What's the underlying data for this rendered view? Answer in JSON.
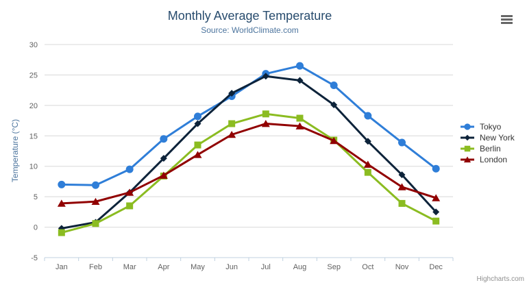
{
  "credits": "Highcharts.com",
  "export_menu": {
    "icon": "hamburger-icon"
  },
  "colors": {
    "background": "#ffffff",
    "title": "#274b6d",
    "subtitle": "#4d759e",
    "axis_title": "#4d759e",
    "tick_label": "#606060",
    "grid": "#d8d8d8",
    "axis_line": "#c0d0e0",
    "legend_text": "#333333",
    "credits_text": "#909090",
    "export_icon": "#666666"
  },
  "chart_data": {
    "type": "line",
    "title": "Monthly Average Temperature",
    "subtitle": "Source: WorldClimate.com",
    "xlabel": "",
    "ylabel": "Temperature (°C)",
    "ylim": [
      -5,
      30
    ],
    "y_ticks": [
      -5,
      0,
      5,
      10,
      15,
      20,
      25,
      30
    ],
    "grid": true,
    "legend_position": "right",
    "categories": [
      "Jan",
      "Feb",
      "Mar",
      "Apr",
      "May",
      "Jun",
      "Jul",
      "Aug",
      "Sep",
      "Oct",
      "Nov",
      "Dec"
    ],
    "series": [
      {
        "name": "Tokyo",
        "color": "#2f7ed8",
        "marker": "circle",
        "values": [
          7.0,
          6.9,
          9.5,
          14.5,
          18.2,
          21.5,
          25.2,
          26.5,
          23.3,
          18.3,
          13.9,
          9.6
        ]
      },
      {
        "name": "New York",
        "color": "#0d233a",
        "marker": "diamond",
        "values": [
          -0.2,
          0.8,
          5.7,
          11.3,
          17.0,
          22.0,
          24.8,
          24.1,
          20.1,
          14.1,
          8.6,
          2.5
        ]
      },
      {
        "name": "Berlin",
        "color": "#8bbc21",
        "marker": "square",
        "values": [
          -0.9,
          0.6,
          3.5,
          8.4,
          13.5,
          17.0,
          18.6,
          17.9,
          14.3,
          9.0,
          3.9,
          1.0
        ]
      },
      {
        "name": "London",
        "color": "#910000",
        "marker": "triangle",
        "values": [
          3.9,
          4.2,
          5.7,
          8.5,
          11.9,
          15.2,
          17.0,
          16.6,
          14.2,
          10.3,
          6.6,
          4.8
        ]
      }
    ]
  }
}
